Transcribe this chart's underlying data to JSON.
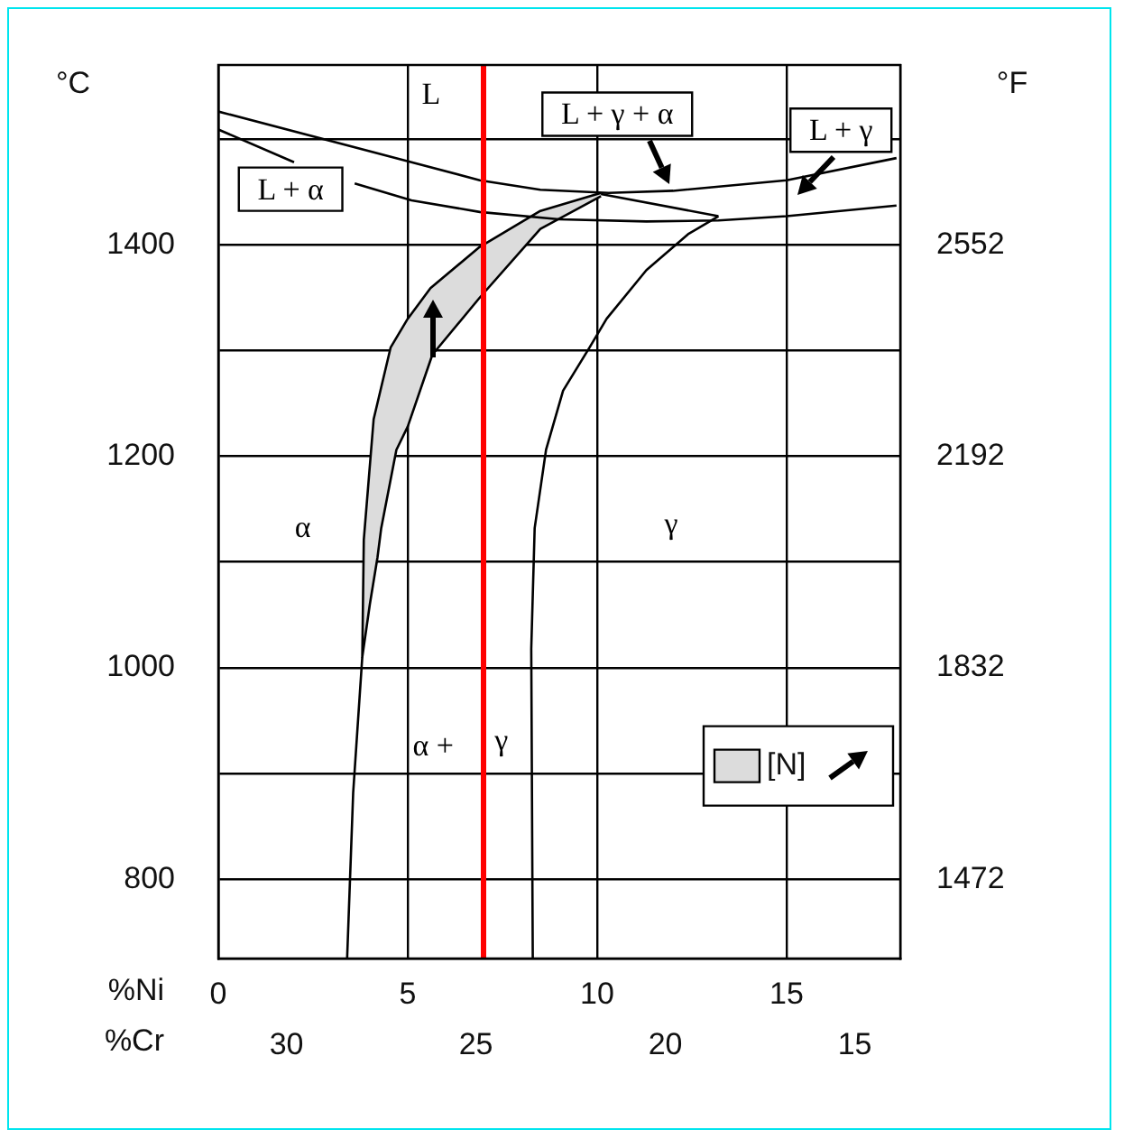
{
  "chart_data": {
    "type": "line",
    "xlabel": "%Ni",
    "x2label": "%Cr",
    "ylabel": "°C",
    "y2label": "°F",
    "xlim": [
      0,
      18
    ],
    "xticks": [
      0,
      5,
      10,
      15
    ],
    "x2lim": [
      31.8,
      13.8
    ],
    "x2ticks": [
      30,
      25,
      20,
      15
    ],
    "ylim": [
      725,
      1570
    ],
    "yticks": [
      800,
      {
        "value": 900,
        "label": null
      },
      1000,
      {
        "value": 1100,
        "label": null
      },
      1200,
      {
        "value": 1300,
        "label": null
      },
      1400,
      {
        "value": 1500,
        "label": null
      }
    ],
    "y2lim": [
      1337,
      2858
    ],
    "y2ticks": [
      1472,
      1832,
      2192,
      2552
    ],
    "grid": true,
    "legend": "right",
    "marker": "none",
    "line_style": "solid",
    "ref_lines": [
      {
        "axis": "x",
        "value": 7,
        "color": "#ff0000"
      }
    ],
    "annotations": [
      "L",
      "L + α",
      "L + γ + α",
      "L + γ",
      "α",
      "γ",
      "α +",
      "γ"
    ],
    "series": [
      {
        "color": "#000000",
        "x": [
          0,
          5.1,
          6.9,
          8.5,
          10.3,
          12,
          15,
          17.9
        ],
        "values": [
          1526,
          1478,
          1461,
          1452,
          1449,
          1451,
          1461,
          1482
        ]
      },
      {
        "color": "#000000",
        "x": [
          0,
          2.0,
          2.8,
          3.6,
          5.1,
          6.9,
          9,
          11.3,
          13.2,
          15,
          17.9
        ],
        "values": [
          1509,
          1478,
          null,
          1458,
          1442,
          1431,
          1424,
          1422,
          1423,
          1427,
          1437
        ]
      },
      {
        "type": "area",
        "name": "[N]",
        "color": "#dcdcdc",
        "x": [
          10.1,
          8.5,
          6.9,
          5.6,
          5.0,
          4.55,
          4.1,
          3.84,
          3.8,
          4.0,
          4.2,
          4.3,
          4.7,
          5.0,
          5.65,
          6.9,
          8.5,
          10.1
        ],
        "values": [
          1449,
          1432,
          1398,
          1359,
          1330,
          1303,
          1235,
          1121,
          1010,
          1060,
          1104,
          1132,
          1206,
          1228,
          1296,
          1350,
          1415,
          1446
        ]
      },
      {
        "color": "#000000",
        "x": [
          3.8,
          3.56,
          3.4
        ],
        "values": [
          1010,
          882,
          725
        ]
      },
      {
        "color": "#000000",
        "x": [
          13.2,
          12.4,
          11.3,
          10.25,
          9.8,
          9.1,
          8.65,
          8.35,
          8.26,
          8.3
        ],
        "values": [
          1427,
          1410,
          1376,
          1330,
          1303,
          1262,
          1206,
          1132,
          1018,
          725
        ]
      },
      {
        "color": "#000000",
        "x": [
          10.1,
          13.2
        ],
        "values": [
          1448,
          1427
        ]
      }
    ]
  }
}
